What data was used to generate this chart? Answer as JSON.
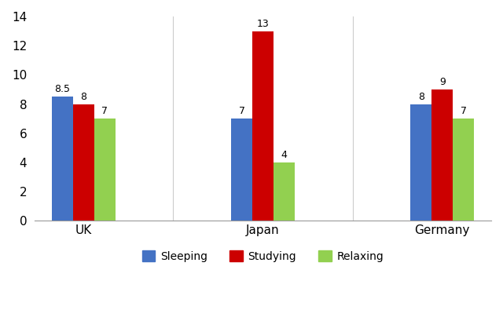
{
  "categories": [
    "UK",
    "Japan",
    "Germany"
  ],
  "series": [
    {
      "label": "Sleeping",
      "values": [
        8.5,
        7,
        8
      ],
      "color": "#4472C4"
    },
    {
      "label": "Studying",
      "values": [
        8,
        13,
        9
      ],
      "color": "#CC0000"
    },
    {
      "label": "Relaxing",
      "values": [
        7,
        4,
        7
      ],
      "color": "#92D050"
    }
  ],
  "ylim": [
    0,
    14
  ],
  "yticks": [
    0,
    2,
    4,
    6,
    8,
    10,
    12,
    14
  ],
  "bar_width": 0.26,
  "background_color": "#FFFFFF",
  "tick_fontsize": 11,
  "legend_fontsize": 10,
  "value_label_fontsize": 9,
  "xlabel_fontsize": 11
}
